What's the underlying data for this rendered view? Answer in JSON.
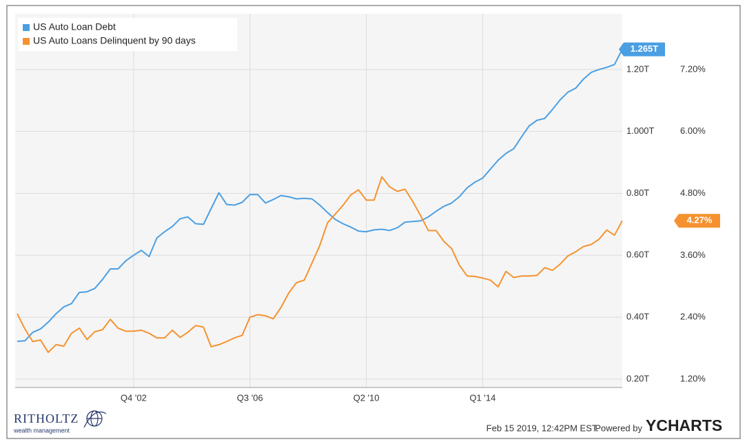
{
  "chart_data": {
    "type": "line",
    "categories": [
      null,
      null,
      null,
      null,
      null,
      null,
      null,
      null,
      null,
      null,
      null,
      null,
      null,
      null,
      null,
      "Q4 '02",
      null,
      null,
      null,
      null,
      null,
      null,
      null,
      null,
      null,
      null,
      null,
      null,
      null,
      null,
      "Q3 '06",
      null,
      null,
      null,
      null,
      null,
      null,
      null,
      null,
      null,
      null,
      null,
      null,
      null,
      null,
      "Q2 '10",
      null,
      null,
      null,
      null,
      null,
      null,
      null,
      null,
      null,
      null,
      null,
      null,
      null,
      null,
      "Q1 '14",
      null,
      null,
      null,
      null,
      null,
      null,
      null,
      null,
      null,
      null,
      null,
      null,
      null,
      null,
      null,
      null,
      null,
      null
    ],
    "series": [
      {
        "name": "US Auto Loan Debt",
        "color": "#4a9fe3",
        "axis": "y",
        "values": [
          0.322,
          0.324,
          0.351,
          0.362,
          0.384,
          0.411,
          0.433,
          0.444,
          0.48,
          0.482,
          0.493,
          0.522,
          0.556,
          0.556,
          0.582,
          0.6,
          0.616,
          0.596,
          0.656,
          0.676,
          0.693,
          0.718,
          0.724,
          0.702,
          0.7,
          0.751,
          0.802,
          0.764,
          0.762,
          0.771,
          0.796,
          0.796,
          0.769,
          0.78,
          0.793,
          0.789,
          0.782,
          0.784,
          0.782,
          0.762,
          0.738,
          0.716,
          0.702,
          0.691,
          0.678,
          0.676,
          0.682,
          0.684,
          0.68,
          0.689,
          0.707,
          0.709,
          0.711,
          0.724,
          0.742,
          0.758,
          0.769,
          0.789,
          0.818,
          0.836,
          0.849,
          0.878,
          0.907,
          0.929,
          0.944,
          0.982,
          1.018,
          1.036,
          1.042,
          1.071,
          1.102,
          1.127,
          1.14,
          1.169,
          1.191,
          1.2,
          1.207,
          1.216,
          1.265
        ],
        "value_labels": [
          null,
          null,
          null,
          null,
          null,
          null,
          null,
          null,
          null,
          null,
          null,
          null,
          null,
          null,
          null,
          null,
          null,
          null,
          null,
          null,
          null,
          null,
          null,
          null,
          null,
          null,
          null,
          null,
          null,
          null,
          null,
          null,
          null,
          null,
          null,
          null,
          null,
          null,
          null,
          null,
          null,
          null,
          null,
          null,
          null,
          null,
          null,
          null,
          null,
          null,
          null,
          null,
          null,
          null,
          null,
          null,
          null,
          null,
          null,
          null,
          null,
          null,
          null,
          null,
          null,
          null,
          null,
          null,
          null,
          null,
          null,
          null,
          null,
          null,
          null,
          null,
          null,
          null,
          "1.265T"
        ]
      },
      {
        "name": "US Auto Loans Delinquent by 90 days",
        "color": "#f5922f",
        "axis": "y2",
        "values": [
          2.47,
          2.17,
          1.93,
          1.96,
          1.72,
          1.87,
          1.84,
          2.09,
          2.19,
          1.97,
          2.12,
          2.16,
          2.36,
          2.19,
          2.13,
          2.13,
          2.15,
          2.09,
          2.0,
          2.0,
          2.15,
          2.01,
          2.11,
          2.24,
          2.21,
          1.83,
          1.87,
          1.93,
          2.0,
          2.05,
          2.4,
          2.45,
          2.43,
          2.37,
          2.59,
          2.87,
          3.07,
          3.12,
          3.45,
          3.79,
          4.23,
          4.4,
          4.57,
          4.77,
          4.87,
          4.67,
          4.67,
          5.12,
          4.93,
          4.84,
          4.88,
          4.64,
          4.37,
          4.08,
          4.08,
          3.87,
          3.73,
          3.41,
          3.2,
          3.19,
          3.16,
          3.12,
          2.99,
          3.29,
          3.17,
          3.2,
          3.2,
          3.21,
          3.36,
          3.31,
          3.43,
          3.59,
          3.67,
          3.77,
          3.81,
          3.91,
          4.09,
          3.99,
          4.27
        ],
        "value_labels": [
          null,
          null,
          null,
          null,
          null,
          null,
          null,
          null,
          null,
          null,
          null,
          null,
          null,
          null,
          null,
          null,
          null,
          null,
          null,
          null,
          null,
          null,
          null,
          null,
          null,
          null,
          null,
          null,
          null,
          null,
          null,
          null,
          null,
          null,
          null,
          null,
          null,
          null,
          null,
          null,
          null,
          null,
          null,
          null,
          null,
          null,
          null,
          null,
          null,
          null,
          null,
          null,
          null,
          null,
          null,
          null,
          null,
          null,
          null,
          null,
          null,
          null,
          null,
          null,
          null,
          null,
          null,
          null,
          null,
          null,
          null,
          null,
          null,
          null,
          null,
          null,
          null,
          null,
          "4.27%"
        ]
      }
    ],
    "ylim": [
      0.173,
      1.38
    ],
    "yticks": [
      {
        "value": 0.2,
        "label": "0.20T"
      },
      {
        "value": 0.4,
        "label": "0.40T"
      },
      {
        "value": 0.6,
        "label": "0.60T"
      },
      {
        "value": 0.8,
        "label": "0.80T"
      },
      {
        "value": 1.0,
        "label": "1.000T"
      },
      {
        "value": 1.2,
        "label": "1.20T"
      }
    ],
    "y2lim": [
      1.04,
      8.28
    ],
    "y2ticks": [
      {
        "value": 1.2,
        "label": "1.20%"
      },
      {
        "value": 2.4,
        "label": "2.40%"
      },
      {
        "value": 3.6,
        "label": "3.60%"
      },
      {
        "value": 4.8,
        "label": "4.80%"
      },
      {
        "value": 6.0,
        "label": "6.00%"
      },
      {
        "value": 7.2,
        "label": "7.20%"
      }
    ],
    "grid": true,
    "legend": "top-left",
    "brand": "RITHOLTZ",
    "brand_tagline": "wealth management",
    "timestamp": "Feb 15 2019, 12:42PM EST.",
    "powered_by": "Powered by",
    "provider": "YCHARTS"
  }
}
